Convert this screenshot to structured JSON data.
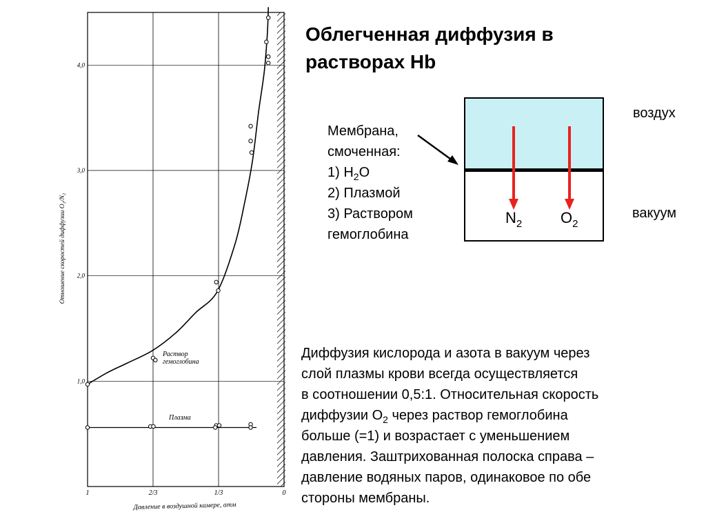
{
  "title": "Облегченная диффузия в растворах Hb",
  "membrane_text": {
    "line1": "Мембрана,",
    "line2": "смоченная:",
    "item1_prefix": "1)  H",
    "item1_sub": "2",
    "item1_suffix": "O",
    "item2": "2)  Плазмой",
    "item3": "3)  Раствором",
    "item4": "гемоглобина"
  },
  "diagram": {
    "air_label": "воздух",
    "vacuum_label": "вакуум",
    "gas1_base": "N",
    "gas1_sub": "2",
    "gas2_base": "O",
    "gas2_sub": "2",
    "air_color": "#c9f0f5",
    "arrow_color": "#e8231e"
  },
  "description": {
    "line1": "Диффузия кислорода и азота в вакуум через",
    "line2": "слой плазмы крови всегда осуществляется",
    "line3": "в соотношении 0,5:1. Относительная скорость",
    "line4_prefix": "диффузии O",
    "line4_sub": "2",
    "line4_suffix": " через раствор гемоглобина",
    "line5": "больше (=1) и возрастает с уменьшением",
    "line6": "давления. Заштрихованная полоска справа –",
    "line7": "давление водяных паров, одинаковое по обе",
    "line8": "стороны мембраны."
  },
  "chart_data": {
    "type": "scatter",
    "xlabel": "Давление в воздушной камере, атм",
    "ylabel": "Отношение скоростей диффузии  O₂/N₂",
    "x_ticks": [
      1,
      0.6667,
      0.3333,
      0
    ],
    "x_tick_labels": [
      "1",
      "2/3",
      "1/3",
      "0"
    ],
    "xlim": [
      1,
      0
    ],
    "y_ticks": [
      1.0,
      2.0,
      3.0,
      4.0
    ],
    "y_tick_labels": [
      "1,0",
      "2,0",
      "3,0",
      "4,0"
    ],
    "ylim": [
      0.0,
      4.5
    ],
    "grid": true,
    "hatched_band_right": true,
    "series": [
      {
        "name": "Раствор гемоглобина",
        "fitted_curve": [
          [
            1.0,
            0.97
          ],
          [
            0.9,
            1.08
          ],
          [
            0.8,
            1.17
          ],
          [
            0.67,
            1.29
          ],
          [
            0.55,
            1.46
          ],
          [
            0.45,
            1.65
          ],
          [
            0.34,
            1.85
          ],
          [
            0.25,
            2.3
          ],
          [
            0.2,
            2.7
          ],
          [
            0.16,
            3.1
          ],
          [
            0.13,
            3.55
          ],
          [
            0.1,
            3.95
          ],
          [
            0.085,
            4.3
          ],
          [
            0.08,
            4.55
          ]
        ],
        "points": [
          [
            1.0,
            0.97
          ],
          [
            0.6667,
            1.22
          ],
          [
            0.655,
            1.2
          ],
          [
            0.345,
            1.94
          ],
          [
            0.335,
            1.86
          ],
          [
            0.17,
            3.42
          ],
          [
            0.17,
            3.28
          ],
          [
            0.165,
            3.17
          ],
          [
            0.08,
            4.45
          ],
          [
            0.09,
            4.22
          ],
          [
            0.08,
            4.08
          ],
          [
            0.08,
            4.02
          ]
        ]
      },
      {
        "name": "Плазма",
        "fitted_line_y": 0.56,
        "points": [
          [
            1.0,
            0.56
          ],
          [
            0.68,
            0.57
          ],
          [
            0.665,
            0.57
          ],
          [
            0.345,
            0.58
          ],
          [
            0.33,
            0.58
          ],
          [
            0.35,
            0.56
          ],
          [
            0.17,
            0.59
          ],
          [
            0.17,
            0.56
          ]
        ]
      }
    ]
  }
}
